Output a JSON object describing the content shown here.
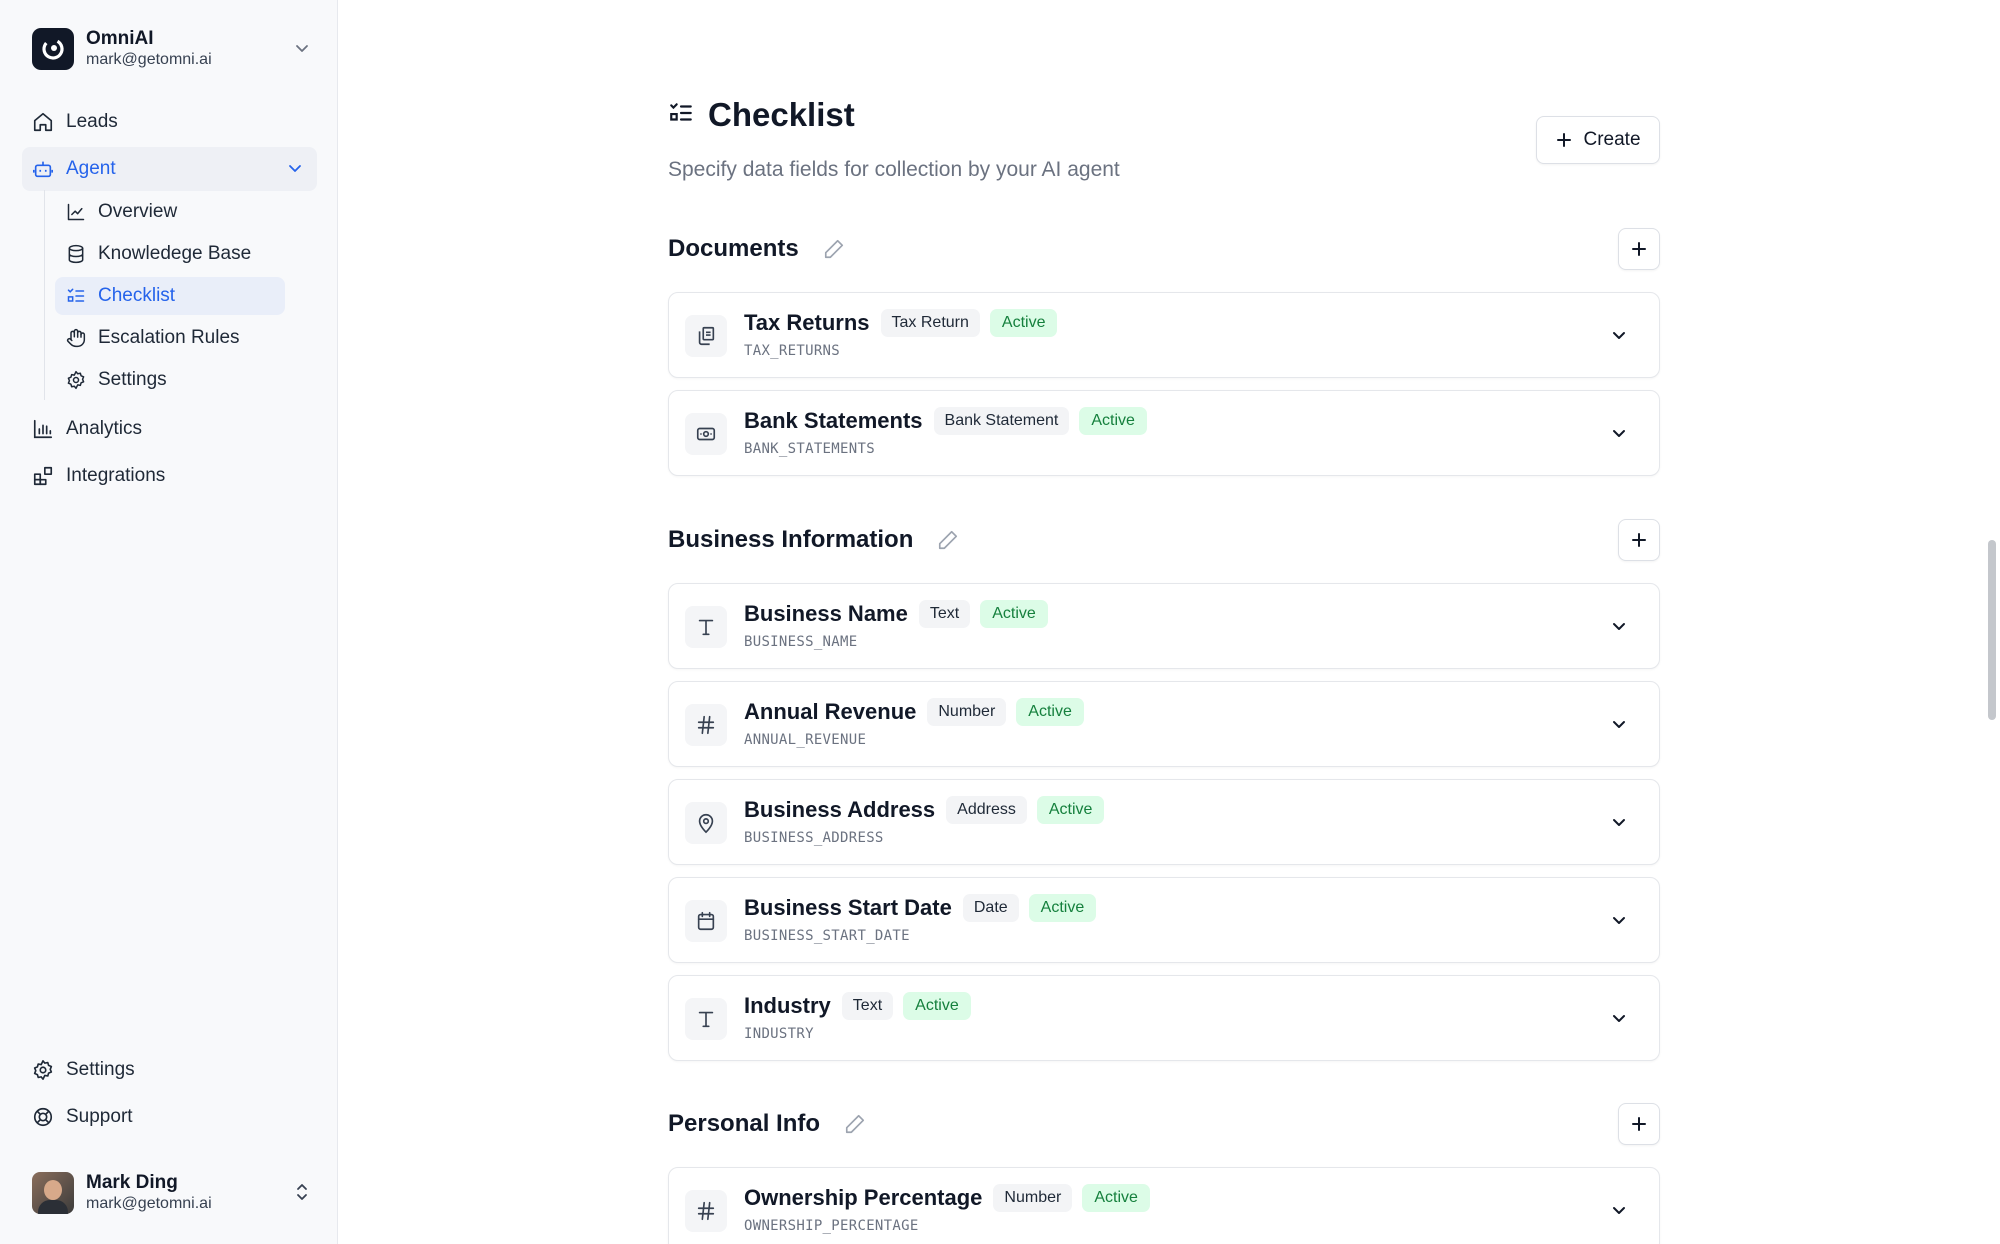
{
  "org": {
    "name": "OmniAI",
    "email": "mark@getomni.ai"
  },
  "nav": {
    "leads": "Leads",
    "agent": "Agent",
    "agent_children": {
      "overview": "Overview",
      "knowledge_base": "Knowledege Base",
      "checklist": "Checklist",
      "escalation_rules": "Escalation Rules",
      "settings": "Settings"
    },
    "analytics": "Analytics",
    "integrations": "Integrations",
    "settings": "Settings",
    "support": "Support"
  },
  "user": {
    "name": "Mark Ding",
    "email": "mark@getomni.ai"
  },
  "page": {
    "title": "Checklist",
    "subtitle": "Specify data fields for collection by your AI agent",
    "create_label": "Create"
  },
  "sections": {
    "documents": {
      "title": "Documents",
      "items": [
        {
          "name": "Tax Returns",
          "tag": "Tax Return",
          "status": "Active",
          "key": "TAX_RETURNS",
          "icon": "copy-icon"
        },
        {
          "name": "Bank Statements",
          "tag": "Bank Statement",
          "status": "Active",
          "key": "BANK_STATEMENTS",
          "icon": "banknote-icon"
        }
      ]
    },
    "business": {
      "title": "Business Information",
      "items": [
        {
          "name": "Business Name",
          "tag": "Text",
          "status": "Active",
          "key": "BUSINESS_NAME",
          "icon": "text-icon"
        },
        {
          "name": "Annual Revenue",
          "tag": "Number",
          "status": "Active",
          "key": "ANNUAL_REVENUE",
          "icon": "hash-icon"
        },
        {
          "name": "Business Address",
          "tag": "Address",
          "status": "Active",
          "key": "BUSINESS_ADDRESS",
          "icon": "map-pin-icon"
        },
        {
          "name": "Business Start Date",
          "tag": "Date",
          "status": "Active",
          "key": "BUSINESS_START_DATE",
          "icon": "calendar-icon"
        },
        {
          "name": "Industry",
          "tag": "Text",
          "status": "Active",
          "key": "INDUSTRY",
          "icon": "text-icon"
        }
      ]
    },
    "personal": {
      "title": "Personal Info",
      "items": [
        {
          "name": "Ownership Percentage",
          "tag": "Number",
          "status": "Active",
          "key": "OWNERSHIP_PERCENTAGE",
          "icon": "hash-icon"
        }
      ]
    }
  },
  "colors": {
    "accent": "#2563eb",
    "active_bg": "#dcfce7",
    "active_text": "#15803d"
  }
}
